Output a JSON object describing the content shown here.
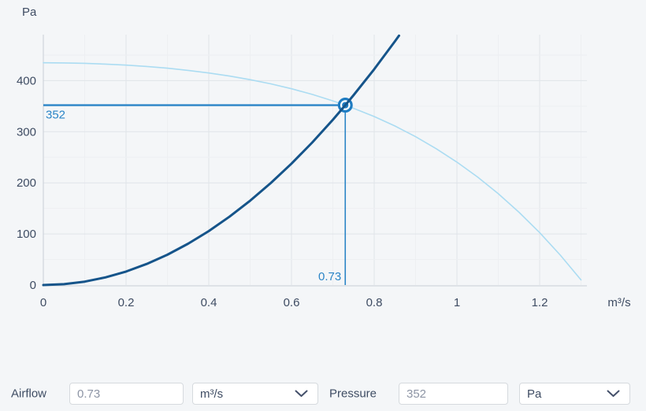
{
  "colors": {
    "background": "#f4f6f8",
    "text": "#3e4c63",
    "accent_blue": "#2b85c7",
    "marker_blue": "#1e7cc2",
    "system_curve": "#15548a",
    "fan_curve": "#abdcf2",
    "grid_major": "#e0e4e9",
    "grid_minor": "#edeff2",
    "axis_line": "#c9cfd6",
    "input_text": "#8d95a5",
    "input_border": "#d6dade"
  },
  "chart_data": {
    "type": "line",
    "title": "",
    "y_unit_label": "Pa",
    "x_unit_label": "m³/s",
    "xlim": [
      0,
      1.3
    ],
    "ylim": [
      0,
      490
    ],
    "x_ticks": [
      0,
      0.2,
      0.4,
      0.6,
      0.8,
      1,
      1.2
    ],
    "x_tick_labels": [
      "0",
      "0.2",
      "0.4",
      "0.6",
      "0.8",
      "1",
      "1.2"
    ],
    "y_ticks": [
      0,
      100,
      200,
      300,
      400
    ],
    "y_tick_labels": [
      "0",
      "100",
      "200",
      "300",
      "400"
    ],
    "x_minor_step": 0.1,
    "y_minor_step": 50,
    "grid": true,
    "legend": "none",
    "series": [
      {
        "name": "fan-pressure-curve",
        "role": "fan curve (available pressure vs airflow)",
        "points": [
          [
            0,
            435
          ],
          [
            0.05,
            434.7
          ],
          [
            0.1,
            433.9
          ],
          [
            0.15,
            432.4
          ],
          [
            0.2,
            430.4
          ],
          [
            0.25,
            427.7
          ],
          [
            0.3,
            424.3
          ],
          [
            0.35,
            420.1
          ],
          [
            0.4,
            415.0
          ],
          [
            0.45,
            409.0
          ],
          [
            0.5,
            401.9
          ],
          [
            0.55,
            393.7
          ],
          [
            0.6,
            384.1
          ],
          [
            0.65,
            373.1
          ],
          [
            0.7,
            360.4
          ],
          [
            0.73,
            352
          ],
          [
            0.75,
            346.0
          ],
          [
            0.8,
            329.7
          ],
          [
            0.85,
            311.2
          ],
          [
            0.9,
            290.3
          ],
          [
            0.95,
            266.8
          ],
          [
            1.0,
            240.6
          ],
          [
            1.05,
            211.3
          ],
          [
            1.1,
            178.7
          ],
          [
            1.15,
            142.6
          ],
          [
            1.2,
            102.6
          ],
          [
            1.25,
            58.5
          ],
          [
            1.3,
            10
          ]
        ]
      },
      {
        "name": "system-resistance-curve",
        "role": "system curve (pressure drop vs airflow)",
        "points": [
          [
            0,
            0
          ],
          [
            0.05,
            1.7
          ],
          [
            0.1,
            6.6
          ],
          [
            0.15,
            14.9
          ],
          [
            0.2,
            26.4
          ],
          [
            0.25,
            41.3
          ],
          [
            0.3,
            59.4
          ],
          [
            0.35,
            80.9
          ],
          [
            0.4,
            105.6
          ],
          [
            0.45,
            133.7
          ],
          [
            0.5,
            165
          ],
          [
            0.55,
            199.7
          ],
          [
            0.6,
            237.6
          ],
          [
            0.65,
            278.9
          ],
          [
            0.7,
            323.4
          ],
          [
            0.73,
            352
          ],
          [
            0.75,
            371.3
          ],
          [
            0.8,
            422.4
          ],
          [
            0.85,
            476.9
          ],
          [
            0.86,
            488
          ]
        ]
      }
    ],
    "operating_point": {
      "x": 0.73,
      "y": 352,
      "x_label": "0.73",
      "y_label": "352"
    }
  },
  "controls": {
    "airflow": {
      "label": "Airflow",
      "value": "0.73",
      "unit": "m³/s"
    },
    "pressure": {
      "label": "Pressure",
      "value": "352",
      "unit": "Pa"
    }
  }
}
